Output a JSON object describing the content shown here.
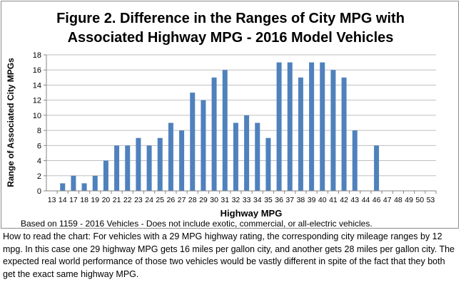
{
  "chart_data": {
    "type": "bar",
    "title_line1": "Figure 2. Difference in the Ranges of City MPG with",
    "title_line2": "Associated Highway MPG - 2016 Model Vehicles",
    "xlabel": "Highway MPG",
    "ylabel": "Range  of Associated City MPGs",
    "ylim": [
      0,
      18
    ],
    "y_ticks": [
      0,
      2,
      4,
      6,
      8,
      10,
      12,
      14,
      16,
      18
    ],
    "grid": true,
    "bar_color": "#4f81bd",
    "categories": [
      "13",
      "14",
      "17",
      "18",
      "19",
      "20",
      "21",
      "22",
      "23",
      "24",
      "25",
      "26",
      "27",
      "28",
      "29",
      "30",
      "31",
      "32",
      "33",
      "34",
      "35",
      "36",
      "37",
      "38",
      "39",
      "40",
      "41",
      "42",
      "43",
      "44",
      "46",
      "47",
      "48",
      "49",
      "50",
      "53"
    ],
    "values": [
      0,
      1,
      2,
      1,
      2,
      4,
      6,
      6,
      7,
      6,
      7,
      9,
      8,
      13,
      12,
      15,
      16,
      9,
      10,
      9,
      7,
      17,
      17,
      15,
      17,
      17,
      16,
      15,
      8,
      0,
      6,
      0,
      0,
      0,
      0,
      0
    ],
    "note": "Based on 1159 - 2016 Vehicles - Does not include exotic, commercial, or all-electric vehicles."
  },
  "caption": "How to read the chart:  For vehicles with a 29 MPG highway rating, the corresponding city mileage ranges by 12 mpg.  In this case one 29 highway MPG gets 16 miles per gallon city, and another gets 28 miles per gallon city. The expected real world performance of those two vehicles would be vastly different in spite of the fact that they both get the exact same highway MPG."
}
